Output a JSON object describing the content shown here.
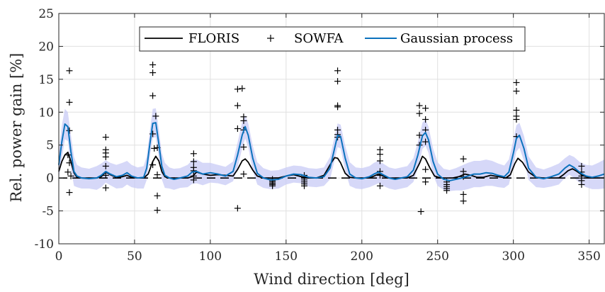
{
  "chart_data": {
    "type": "line",
    "xlabel": "Wind direction [deg]",
    "ylabel": "Rel. power gain [%]",
    "xlim": [
      0,
      360
    ],
    "ylim": [
      -10,
      25
    ],
    "xticks": [
      0,
      50,
      100,
      150,
      200,
      250,
      300,
      350
    ],
    "yticks": [
      -10,
      -5,
      0,
      5,
      10,
      15,
      20,
      25
    ],
    "grid": true,
    "legend_position": "top-center",
    "colors": {
      "floris": "#000000",
      "sowfa": "#000000",
      "gp": "#0b72bd",
      "band": "#c8cbf5",
      "grid": "#e0e0e0",
      "axis": "#262626"
    },
    "series": [
      {
        "name": "FLORIS",
        "style": "line",
        "x": [
          0,
          2,
          4,
          6,
          8,
          10,
          12,
          15,
          20,
          25,
          28,
          31,
          34,
          38,
          42,
          45,
          48,
          52,
          56,
          59,
          62,
          64,
          66,
          68,
          70,
          72,
          75,
          80,
          85,
          88,
          91,
          95,
          100,
          105,
          110,
          115,
          118,
          121,
          123,
          125,
          128,
          131,
          135,
          140,
          145,
          150,
          155,
          160,
          165,
          170,
          175,
          179,
          182,
          184,
          186,
          189,
          192,
          196,
          200,
          205,
          208,
          211,
          214,
          218,
          222,
          226,
          230,
          234,
          238,
          240,
          242,
          245,
          248,
          252,
          256,
          260,
          264,
          268,
          272,
          276,
          280,
          285,
          290,
          295,
          298,
          301,
          303,
          306,
          310,
          315,
          320,
          325,
          330,
          333,
          336,
          339,
          342,
          345,
          348,
          352,
          356,
          360
        ],
        "y": [
          1.0,
          2.5,
          3.5,
          3.9,
          2.5,
          0.8,
          0.1,
          0.0,
          0.0,
          0.0,
          0.2,
          0.9,
          0.5,
          0.1,
          0.2,
          0.4,
          0.1,
          0.0,
          0.0,
          0.6,
          2.5,
          3.3,
          2.6,
          1.0,
          0.2,
          0.0,
          0.0,
          0.0,
          0.0,
          0.2,
          0.9,
          0.6,
          0.4,
          0.5,
          0.4,
          0.3,
          1.3,
          2.6,
          2.9,
          2.4,
          1.2,
          0.3,
          0.0,
          0.0,
          0.0,
          0.3,
          0.5,
          0.2,
          0.0,
          0.0,
          0.4,
          2.0,
          3.1,
          3.0,
          2.3,
          0.7,
          0.1,
          0.0,
          0.0,
          0.0,
          0.3,
          0.6,
          0.3,
          0.0,
          0.0,
          0.0,
          0.0,
          0.4,
          2.2,
          3.3,
          2.9,
          1.5,
          0.3,
          0.0,
          0.0,
          0.0,
          0.2,
          0.6,
          0.4,
          0.1,
          0.1,
          0.4,
          0.2,
          0.0,
          0.5,
          2.2,
          3.0,
          2.4,
          0.9,
          0.1,
          0.0,
          0.0,
          0.0,
          0.5,
          1.1,
          1.4,
          1.0,
          0.5,
          0.2,
          0.0,
          0.0,
          0.0
        ]
      },
      {
        "name": "SOWFA",
        "style": "plus",
        "x": [
          7,
          7,
          7,
          6,
          7,
          6,
          7,
          8,
          31,
          31,
          31,
          31,
          31,
          31,
          31,
          62,
          62,
          62,
          62,
          63,
          62,
          64,
          65,
          65,
          65,
          65,
          89,
          89,
          89,
          89,
          89,
          89,
          118,
          118,
          118,
          118,
          121,
          122,
          122,
          122,
          122,
          122,
          141,
          141,
          141,
          141,
          141,
          141,
          162,
          162,
          162,
          162,
          162,
          184,
          184,
          184,
          184,
          184,
          184,
          184,
          212,
          212,
          212,
          212,
          212,
          212,
          238,
          238,
          238,
          238,
          239,
          242,
          242,
          242,
          242,
          242,
          242,
          256,
          256,
          256,
          256,
          256,
          267,
          267,
          267,
          267,
          267,
          302,
          302,
          302,
          302,
          302,
          302,
          345,
          345,
          345,
          345,
          345,
          345
        ],
        "y": [
          16.3,
          11.5,
          7.2,
          3.5,
          2.3,
          0.9,
          -2.2,
          0.3,
          6.2,
          4.3,
          3.8,
          3.2,
          1.8,
          0.4,
          -1.5,
          17.2,
          16.0,
          12.5,
          6.7,
          4.5,
          2.0,
          9.4,
          4.6,
          0.5,
          -2.7,
          -4.9,
          3.7,
          2.5,
          1.6,
          1.1,
          0.3,
          -0.3,
          13.5,
          11.0,
          7.5,
          -4.6,
          13.6,
          9.3,
          8.7,
          7.3,
          4.7,
          0.6,
          -0.4,
          -0.6,
          -0.8,
          -1.0,
          -1.2,
          -0.2,
          0.4,
          -0.3,
          -0.6,
          -0.9,
          -1.2,
          16.3,
          14.7,
          11.0,
          10.8,
          7.3,
          6.6,
          6.2,
          4.3,
          3.6,
          2.6,
          1.0,
          0.4,
          -1.2,
          11.0,
          9.8,
          6.5,
          5.0,
          -5.1,
          10.6,
          8.9,
          7.3,
          5.5,
          1.3,
          -0.6,
          -0.6,
          -1.0,
          -1.3,
          -1.6,
          -1.9,
          2.9,
          1.0,
          0.2,
          -2.5,
          -3.5,
          14.5,
          13.2,
          10.3,
          9.4,
          8.9,
          6.3,
          1.8,
          0.9,
          0.3,
          0.0,
          -0.4,
          -1.0
        ]
      },
      {
        "name": "Gaussian process",
        "style": "line",
        "x": [
          0,
          2,
          4,
          6,
          8,
          10,
          12,
          15,
          20,
          25,
          28,
          31,
          34,
          38,
          42,
          45,
          48,
          52,
          56,
          58,
          60,
          62,
          64,
          66,
          68,
          70,
          73,
          76,
          80,
          85,
          88,
          91,
          95,
          100,
          105,
          110,
          115,
          118,
          121,
          123,
          125,
          128,
          131,
          135,
          140,
          145,
          150,
          155,
          160,
          165,
          170,
          175,
          179,
          182,
          184,
          186,
          189,
          192,
          196,
          200,
          205,
          208,
          211,
          214,
          218,
          222,
          226,
          230,
          234,
          237,
          240,
          242,
          244,
          247,
          250,
          254,
          258,
          262,
          266,
          270,
          274,
          278,
          282,
          286,
          290,
          294,
          297,
          300,
          302,
          304,
          307,
          310,
          315,
          320,
          325,
          330,
          334,
          337,
          340,
          344,
          348,
          352,
          356,
          360
        ],
        "y": [
          2.0,
          5.5,
          8.2,
          7.8,
          4.0,
          1.0,
          0.3,
          0.0,
          -0.1,
          0.0,
          0.4,
          1.0,
          0.6,
          0.2,
          0.4,
          0.8,
          0.3,
          0.0,
          0.1,
          1.5,
          5.0,
          8.3,
          8.4,
          5.2,
          1.8,
          0.4,
          0.0,
          -0.2,
          0.0,
          0.3,
          0.9,
          1.0,
          0.6,
          0.8,
          0.6,
          0.3,
          1.0,
          3.5,
          6.5,
          7.8,
          6.5,
          3.0,
          0.7,
          0.0,
          -0.3,
          -0.2,
          0.3,
          0.6,
          0.5,
          0.1,
          0.0,
          0.2,
          1.5,
          4.5,
          6.5,
          6.3,
          3.0,
          0.6,
          0.0,
          -0.1,
          0.2,
          0.6,
          0.9,
          0.5,
          0.0,
          -0.2,
          0.0,
          0.2,
          1.2,
          3.5,
          6.4,
          6.9,
          5.8,
          2.5,
          0.6,
          -0.2,
          -0.4,
          -0.2,
          0.0,
          0.3,
          0.6,
          0.6,
          0.8,
          0.7,
          0.4,
          0.2,
          0.9,
          3.8,
          6.0,
          6.5,
          4.5,
          1.5,
          0.1,
          -0.1,
          0.2,
          0.6,
          1.5,
          2.0,
          1.6,
          0.8,
          0.3,
          0.1,
          0.3,
          0.6
        ]
      }
    ],
    "gp_band": {
      "x": [
        0,
        2,
        4,
        6,
        8,
        10,
        12,
        15,
        20,
        25,
        28,
        31,
        34,
        38,
        42,
        45,
        48,
        52,
        56,
        58,
        60,
        62,
        64,
        66,
        68,
        70,
        73,
        76,
        80,
        85,
        88,
        91,
        95,
        100,
        105,
        110,
        115,
        118,
        121,
        123,
        125,
        128,
        131,
        135,
        140,
        145,
        150,
        155,
        160,
        165,
        170,
        175,
        179,
        182,
        184,
        186,
        189,
        192,
        196,
        200,
        205,
        208,
        211,
        214,
        218,
        222,
        226,
        230,
        234,
        237,
        240,
        242,
        244,
        247,
        250,
        254,
        258,
        262,
        266,
        270,
        274,
        278,
        282,
        286,
        290,
        294,
        297,
        300,
        302,
        304,
        307,
        310,
        315,
        320,
        325,
        330,
        334,
        337,
        340,
        344,
        348,
        352,
        356,
        360
      ],
      "upper": [
        4.0,
        8.0,
        10.5,
        10.0,
        6.5,
        3.2,
        2.0,
        1.6,
        1.4,
        1.8,
        2.2,
        2.7,
        2.3,
        2.0,
        2.3,
        2.6,
        2.0,
        1.6,
        1.8,
        3.3,
        7.0,
        10.5,
        10.6,
        7.4,
        3.8,
        2.3,
        1.6,
        1.4,
        1.5,
        2.0,
        2.7,
        2.8,
        2.3,
        2.3,
        2.0,
        1.7,
        2.5,
        5.4,
        8.5,
        9.6,
        8.3,
        4.9,
        2.4,
        1.5,
        1.1,
        1.2,
        1.6,
        1.9,
        1.8,
        1.5,
        1.4,
        1.6,
        3.2,
        6.3,
        8.3,
        8.1,
        4.9,
        2.4,
        1.6,
        1.5,
        1.8,
        2.3,
        2.6,
        2.2,
        1.6,
        1.4,
        1.6,
        1.8,
        3.0,
        5.5,
        8.4,
        8.9,
        7.8,
        4.5,
        2.4,
        1.4,
        1.2,
        1.5,
        1.9,
        2.3,
        2.6,
        2.6,
        2.8,
        2.6,
        2.2,
        1.9,
        2.8,
        5.8,
        8.0,
        8.4,
        6.4,
        3.3,
        1.6,
        1.3,
        1.7,
        2.2,
        3.0,
        3.5,
        3.2,
        2.4,
        2.0,
        1.9,
        2.3,
        2.8
      ],
      "lower": [
        0.0,
        3.0,
        5.9,
        5.6,
        1.5,
        -1.2,
        -1.4,
        -1.6,
        -1.6,
        -1.8,
        -1.4,
        -0.7,
        -1.1,
        -1.6,
        -1.5,
        -1.0,
        -1.4,
        -1.6,
        -1.6,
        -0.3,
        3.0,
        6.1,
        6.2,
        3.0,
        -0.2,
        -1.5,
        -1.6,
        -1.8,
        -1.5,
        -1.4,
        -0.9,
        -0.8,
        -1.1,
        -0.7,
        -0.8,
        -1.1,
        -0.5,
        1.6,
        4.5,
        6.0,
        4.7,
        1.1,
        -1.0,
        -1.5,
        -1.7,
        -1.6,
        -1.0,
        -0.7,
        -0.8,
        -1.3,
        -1.4,
        -1.2,
        -0.2,
        2.7,
        4.7,
        4.5,
        1.1,
        -1.2,
        -1.6,
        -1.7,
        -1.4,
        -1.1,
        -0.8,
        -1.2,
        -1.6,
        -1.8,
        -1.6,
        -1.4,
        -0.6,
        1.5,
        4.4,
        4.9,
        3.8,
        0.5,
        -1.2,
        -1.8,
        -2.0,
        -1.9,
        -1.9,
        -1.7,
        -1.4,
        -1.4,
        -1.2,
        -1.2,
        -1.4,
        -1.5,
        -1.0,
        1.8,
        4.0,
        4.6,
        2.6,
        -0.3,
        -1.4,
        -1.5,
        -1.3,
        -1.0,
        0.0,
        0.5,
        0.0,
        -0.8,
        -1.4,
        -1.7,
        -1.7,
        -1.6
      ]
    },
    "reference_line": {
      "y": 0,
      "style": "dashed",
      "color": "#000000"
    }
  }
}
